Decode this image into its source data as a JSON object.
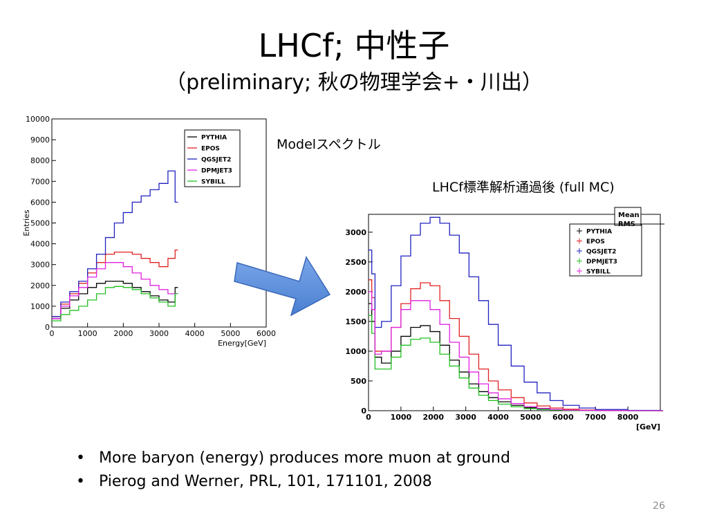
{
  "title": "LHCf; 中性子",
  "subtitle": "（preliminary; 秋の物理学会+・川出）",
  "label_model": "Modelスペクトル",
  "label_lhcf": "LHCf標準解析通過後 (full MC)",
  "arrow_color": "#4a7fd0",
  "bullets": [
    "More baryon (energy) produces more muon at ground",
    "Pierog and Werner, PRL, 101, 171101, 2008"
  ],
  "page_number": "26",
  "chart_data": [
    {
      "type": "line",
      "xlabel": "Energy[GeV]",
      "ylabel": "Entries",
      "xlim": [
        0,
        6000
      ],
      "ylim": [
        0,
        10000
      ],
      "xticks": [
        0,
        1000,
        2000,
        3000,
        4000,
        5000,
        6000
      ],
      "yticks": [
        0,
        1000,
        2000,
        3000,
        4000,
        5000,
        6000,
        7000,
        8000,
        9000,
        10000
      ],
      "legend_position": "top-right",
      "x": [
        0,
        250,
        500,
        750,
        1000,
        1250,
        1500,
        1750,
        2000,
        2250,
        2500,
        2750,
        3000,
        3250,
        3450
      ],
      "series": [
        {
          "name": "PYTHIA",
          "color": "#000000",
          "values": [
            400,
            900,
            1300,
            1600,
            1900,
            2100,
            2200,
            2200,
            2100,
            1900,
            1700,
            1500,
            1300,
            1200,
            1900
          ]
        },
        {
          "name": "EPOS",
          "color": "#e02020",
          "values": [
            500,
            1100,
            1600,
            2100,
            2600,
            3100,
            3500,
            3600,
            3600,
            3500,
            3300,
            3100,
            2900,
            3300,
            3700
          ]
        },
        {
          "name": "QGSJET2",
          "color": "#2020c0",
          "values": [
            500,
            1200,
            1700,
            2200,
            2800,
            3500,
            4300,
            5000,
            5500,
            6000,
            6300,
            6600,
            6900,
            7500,
            6000
          ]
        },
        {
          "name": "DPMJET3",
          "color": "#e020e0",
          "values": [
            400,
            1000,
            1500,
            1900,
            2400,
            2800,
            3100,
            3100,
            2900,
            2600,
            2300,
            2000,
            1800,
            1600,
            1600
          ]
        },
        {
          "name": "SYBILL",
          "color": "#20c020",
          "values": [
            300,
            600,
            800,
            1000,
            1300,
            1600,
            1900,
            1950,
            1900,
            1800,
            1600,
            1400,
            1200,
            1000,
            1600
          ]
        }
      ]
    },
    {
      "type": "line",
      "xlabel": "[GeV]",
      "xlim": [
        0,
        9000
      ],
      "ylim": [
        0,
        3300
      ],
      "xticks": [
        0,
        1000,
        2000,
        3000,
        4000,
        5000,
        6000,
        7000,
        8000
      ],
      "yticks": [
        0,
        500,
        1000,
        1500,
        2000,
        2500,
        3000
      ],
      "legend_position": "top-right",
      "stats_box": [
        "Mean",
        "RMS"
      ],
      "x": [
        0,
        100,
        200,
        400,
        700,
        1000,
        1300,
        1600,
        1900,
        2200,
        2500,
        2800,
        3100,
        3400,
        3700,
        4000,
        4400,
        4800,
        5200,
        5600,
        6000,
        6500,
        7000,
        8000,
        9000
      ],
      "series": [
        {
          "name": "PYTHIA",
          "color": "#000000",
          "values": [
            1800,
            1500,
            900,
            800,
            1000,
            1250,
            1400,
            1430,
            1330,
            1100,
            850,
            650,
            450,
            320,
            220,
            150,
            90,
            50,
            30,
            15,
            8,
            5,
            3,
            1,
            0
          ]
        },
        {
          "name": "EPOS",
          "color": "#e02020",
          "values": [
            2200,
            1900,
            1000,
            1000,
            1400,
            1800,
            2050,
            2150,
            2100,
            1850,
            1550,
            1250,
            950,
            700,
            500,
            350,
            220,
            130,
            80,
            45,
            25,
            12,
            6,
            2,
            0
          ]
        },
        {
          "name": "QGSJET2",
          "color": "#2020c0",
          "values": [
            2700,
            2300,
            1400,
            1500,
            2100,
            2600,
            2950,
            3150,
            3250,
            3150,
            2950,
            2650,
            2250,
            1850,
            1450,
            1100,
            750,
            480,
            300,
            170,
            90,
            45,
            20,
            5,
            0
          ]
        },
        {
          "name": "DPMJET3",
          "color": "#20c020",
          "values": [
            1600,
            1300,
            700,
            700,
            900,
            1100,
            1200,
            1220,
            1150,
            950,
            750,
            550,
            380,
            260,
            170,
            110,
            65,
            35,
            20,
            10,
            5,
            3,
            1,
            0,
            0
          ]
        },
        {
          "name": "SYBILL",
          "color": "#e020e0",
          "values": [
            2000,
            1700,
            950,
            1000,
            1400,
            1700,
            1850,
            1850,
            1700,
            1450,
            1150,
            900,
            650,
            450,
            300,
            200,
            120,
            70,
            40,
            20,
            10,
            5,
            2,
            0,
            0
          ]
        }
      ]
    }
  ]
}
